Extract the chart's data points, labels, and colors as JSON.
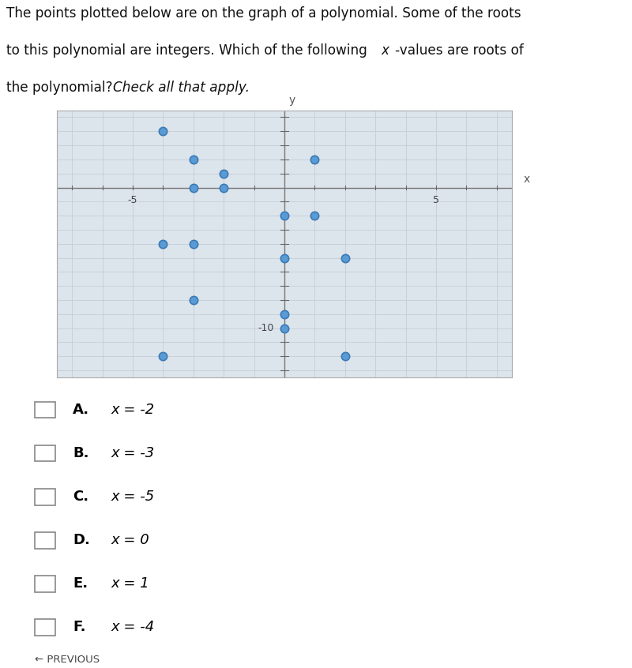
{
  "points": [
    [
      -4,
      4
    ],
    [
      -3,
      2
    ],
    [
      -2,
      1
    ],
    [
      -3,
      0
    ],
    [
      -2,
      0
    ],
    [
      1,
      2
    ],
    [
      0,
      -2
    ],
    [
      1,
      -2
    ],
    [
      -4,
      -4
    ],
    [
      -3,
      -4
    ],
    [
      0,
      -5
    ],
    [
      2,
      -5
    ],
    [
      -3,
      -8
    ],
    [
      0,
      -9
    ],
    [
      0,
      -10
    ],
    [
      -4,
      -12
    ],
    [
      2,
      -12
    ]
  ],
  "point_facecolor": "#5b9bd5",
  "point_edgecolor": "#3a7ab5",
  "point_size": 55,
  "xlim": [
    -7.5,
    7.5
  ],
  "ylim": [
    -13.5,
    5.5
  ],
  "choices": [
    [
      "A.",
      "x = -2"
    ],
    [
      "B.",
      "x = -3"
    ],
    [
      "C.",
      "x = -5"
    ],
    [
      "D.",
      "x = 0"
    ],
    [
      "E.",
      "x = 1"
    ],
    [
      "F.",
      "x = -4"
    ]
  ],
  "fig_bg": "#f0f0f0",
  "plot_bg": "#dce4ec",
  "grid_color": "#c5cdd5",
  "axis_label_color": "#555555",
  "tick_label_color": "#444444",
  "text_color": "#111111"
}
